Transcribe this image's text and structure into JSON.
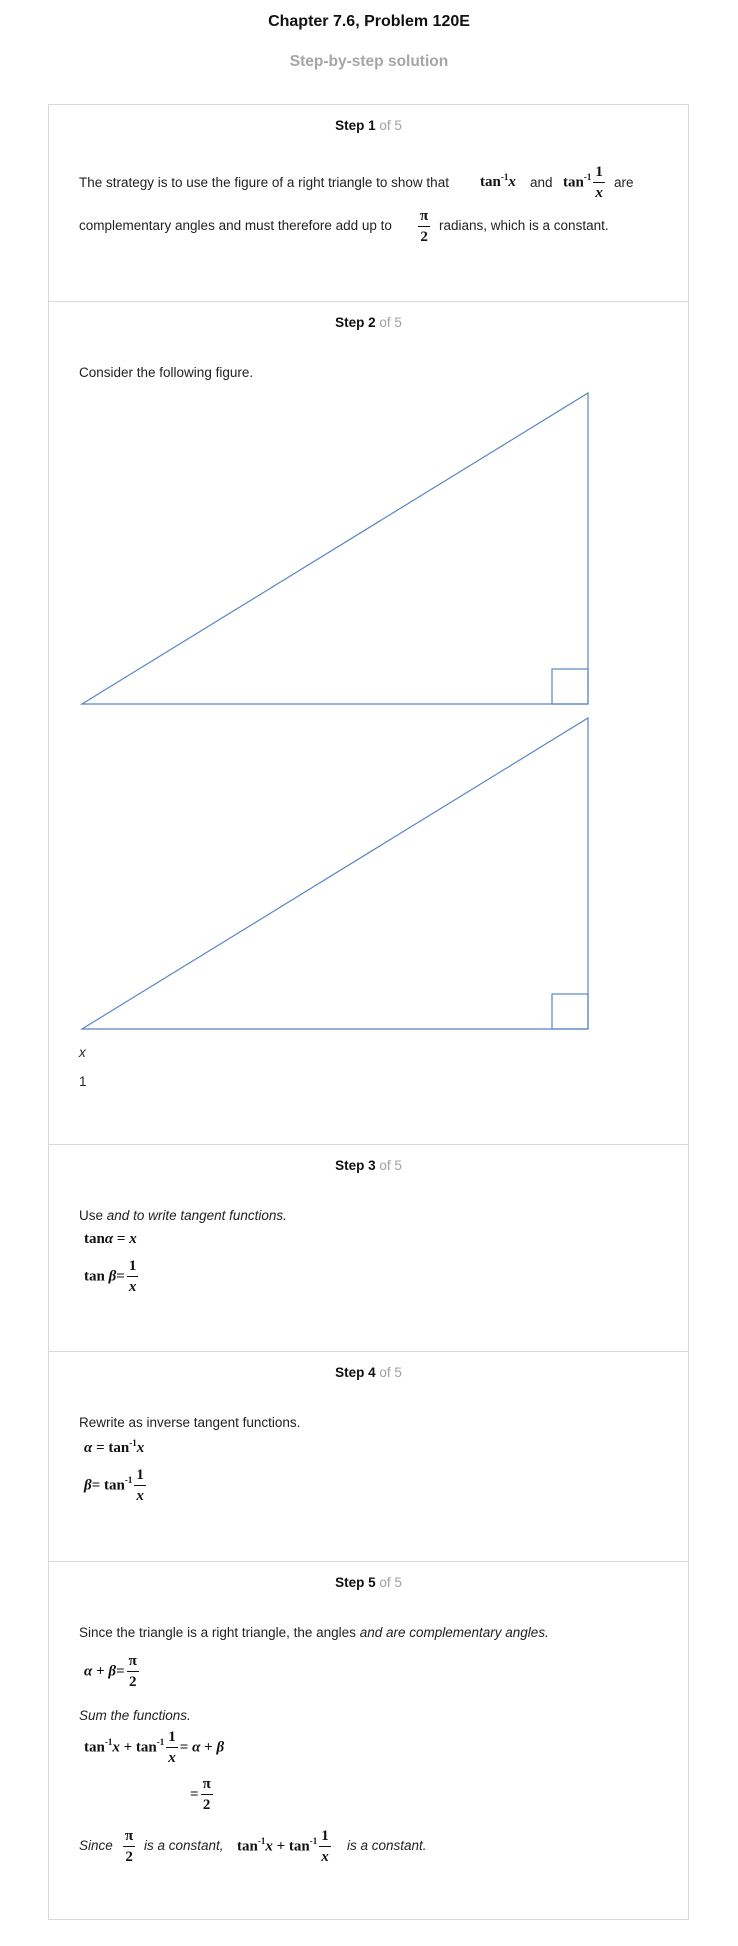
{
  "header": {
    "title": "Chapter 7.6, Problem 120E",
    "subtitle": "Step-by-step solution"
  },
  "step_word": "Step",
  "of_total": "of 5",
  "steps": {
    "s1": {
      "number": "1",
      "t1": "The strategy is to use the figure of a right triangle to show that",
      "t2": "and",
      "t3": "are",
      "t4": "complementary angles and must therefore add up to",
      "t5": "radians, which is a constant."
    },
    "s2": {
      "number": "2",
      "t1": "Consider the following figure.",
      "label_x": "x",
      "label_1": "1"
    },
    "s3": {
      "number": "3",
      "t1": "Use",
      "t2": "and",
      "t3": "to write tangent functions."
    },
    "s4": {
      "number": "4",
      "t1": "Rewrite as inverse tangent functions."
    },
    "s5": {
      "number": "5",
      "t1": "Since the triangle is a right triangle, the angles",
      "t2": "and",
      "t3": "are complementary angles.",
      "t4": "Sum the functions.",
      "t5": "Since",
      "t6": "is a constant,",
      "t7": "is a constant."
    }
  },
  "math": {
    "tan": "tan",
    "inv": "-1",
    "x": "x",
    "one": "1",
    "pi": "π",
    "two": "2",
    "alpha": "α",
    "beta": "β",
    "eq": "=",
    "plus": "+"
  },
  "colors": {
    "triangle_stroke": "#5b84c4",
    "border": "#d9d9d9",
    "muted": "#a6a6a6"
  }
}
